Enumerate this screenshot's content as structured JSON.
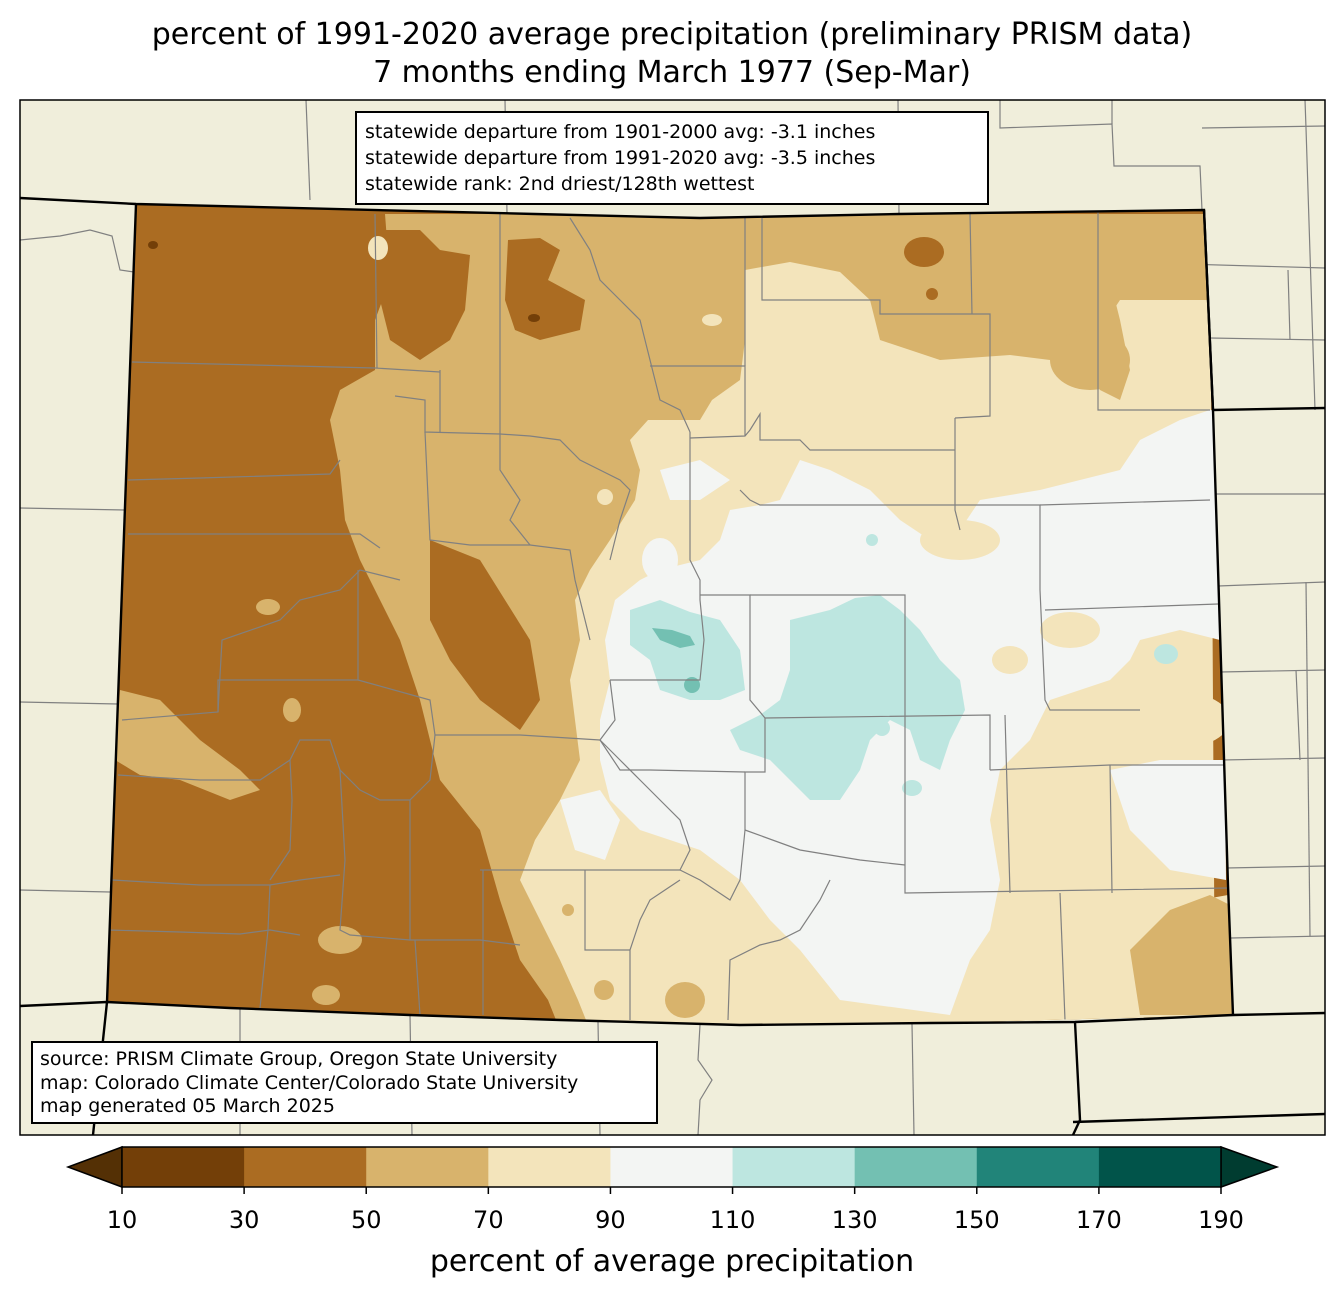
{
  "title": {
    "line1": "percent of 1991-2020 average precipitation (preliminary PRISM data)",
    "line2": "7 months ending March 1977 (Sep-Mar)"
  },
  "stats": [
    "statewide departure from 1901-2000 avg: -3.1 inches",
    "statewide departure from 1991-2020 avg: -3.5 inches",
    "statewide rank: 2nd driest/128th wettest"
  ],
  "source": [
    "source: PRISM Climate Group, Oregon State University",
    "map: Colorado Climate Center/Colorado State University",
    "map generated 05 March 2025"
  ],
  "colorbar": {
    "label": "percent of average precipitation",
    "ticks": [
      "10",
      "30",
      "50",
      "70",
      "90",
      "110",
      "130",
      "150",
      "170",
      "190"
    ],
    "bins": [
      {
        "range": "10-30",
        "color": "#733f08"
      },
      {
        "range": "30-50",
        "color": "#ab6c22"
      },
      {
        "range": "50-70",
        "color": "#d8b36c"
      },
      {
        "range": "70-90",
        "color": "#f3e4bb"
      },
      {
        "range": "90-110",
        "color": "#f3f5f3"
      },
      {
        "range": "110-130",
        "color": "#bde6e0"
      },
      {
        "range": "130-150",
        "color": "#73c0b2"
      },
      {
        "range": "150-170",
        "color": "#218479"
      },
      {
        "range": "170-190",
        "color": "#01544a"
      }
    ],
    "under_color": "#543005",
    "over_color": "#003c30"
  },
  "map_colors": {
    "background": "#f0eedb",
    "county_lines": "#808080",
    "state_lines": "#000000"
  }
}
